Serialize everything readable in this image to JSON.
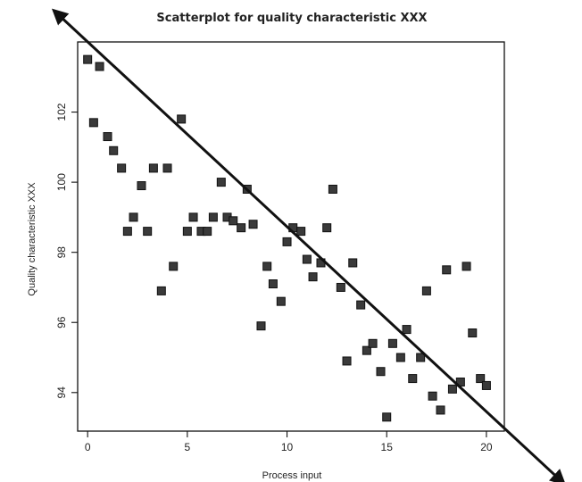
{
  "chart_data": {
    "type": "scatter",
    "title": "Scatterplot for quality characteristic XXX",
    "xlabel": "Process input",
    "ylabel": "Quality characteristic XXX",
    "xlim": [
      -0.5,
      20.9
    ],
    "ylim": [
      92.9,
      104.0
    ],
    "x_ticks": [
      0,
      5,
      10,
      15,
      20
    ],
    "y_ticks": [
      94,
      96,
      98,
      100,
      102
    ],
    "x_tick_labels": [
      "0",
      "5",
      "10",
      "15",
      "20"
    ],
    "y_tick_labels": [
      "94",
      "96",
      "98",
      "100",
      "102"
    ],
    "grid": false,
    "legend": "none",
    "points": [
      {
        "x": 0.0,
        "y": 103.5
      },
      {
        "x": 0.3,
        "y": 101.7
      },
      {
        "x": 0.6,
        "y": 103.3
      },
      {
        "x": 1.0,
        "y": 101.3
      },
      {
        "x": 1.3,
        "y": 100.9
      },
      {
        "x": 1.7,
        "y": 100.4
      },
      {
        "x": 2.0,
        "y": 98.6
      },
      {
        "x": 2.3,
        "y": 99.0
      },
      {
        "x": 2.7,
        "y": 99.9
      },
      {
        "x": 3.0,
        "y": 98.6
      },
      {
        "x": 3.3,
        "y": 100.4
      },
      {
        "x": 3.7,
        "y": 96.9
      },
      {
        "x": 4.0,
        "y": 100.4
      },
      {
        "x": 4.3,
        "y": 97.6
      },
      {
        "x": 4.7,
        "y": 101.8
      },
      {
        "x": 5.0,
        "y": 98.6
      },
      {
        "x": 5.3,
        "y": 99.0
      },
      {
        "x": 5.7,
        "y": 98.6
      },
      {
        "x": 6.0,
        "y": 98.6
      },
      {
        "x": 6.3,
        "y": 99.0
      },
      {
        "x": 6.7,
        "y": 100.0
      },
      {
        "x": 7.0,
        "y": 99.0
      },
      {
        "x": 7.3,
        "y": 98.9
      },
      {
        "x": 7.7,
        "y": 98.7
      },
      {
        "x": 8.0,
        "y": 99.8
      },
      {
        "x": 8.3,
        "y": 98.8
      },
      {
        "x": 8.7,
        "y": 95.9
      },
      {
        "x": 9.0,
        "y": 97.6
      },
      {
        "x": 9.3,
        "y": 97.1
      },
      {
        "x": 9.7,
        "y": 96.6
      },
      {
        "x": 10.0,
        "y": 98.3
      },
      {
        "x": 10.3,
        "y": 98.7
      },
      {
        "x": 10.7,
        "y": 98.6
      },
      {
        "x": 11.0,
        "y": 97.8
      },
      {
        "x": 11.3,
        "y": 97.3
      },
      {
        "x": 11.7,
        "y": 97.7
      },
      {
        "x": 12.0,
        "y": 98.7
      },
      {
        "x": 12.3,
        "y": 99.8
      },
      {
        "x": 12.7,
        "y": 97.0
      },
      {
        "x": 13.0,
        "y": 94.9
      },
      {
        "x": 13.3,
        "y": 97.7
      },
      {
        "x": 13.7,
        "y": 96.5
      },
      {
        "x": 14.0,
        "y": 95.2
      },
      {
        "x": 14.3,
        "y": 95.4
      },
      {
        "x": 14.7,
        "y": 94.6
      },
      {
        "x": 15.0,
        "y": 93.3
      },
      {
        "x": 15.3,
        "y": 95.4
      },
      {
        "x": 15.7,
        "y": 95.0
      },
      {
        "x": 16.0,
        "y": 95.8
      },
      {
        "x": 16.3,
        "y": 94.4
      },
      {
        "x": 16.7,
        "y": 95.0
      },
      {
        "x": 17.0,
        "y": 96.9
      },
      {
        "x": 17.3,
        "y": 93.9
      },
      {
        "x": 17.7,
        "y": 93.5
      },
      {
        "x": 18.0,
        "y": 97.5
      },
      {
        "x": 18.3,
        "y": 94.1
      },
      {
        "x": 18.7,
        "y": 94.3
      },
      {
        "x": 19.0,
        "y": 97.6
      },
      {
        "x": 19.3,
        "y": 95.7
      },
      {
        "x": 19.7,
        "y": 94.4
      },
      {
        "x": 20.0,
        "y": 94.2
      }
    ],
    "trend_line": {
      "x1": -1.7,
      "y1": 104.9,
      "x2": 23.9,
      "y2": 91.4,
      "arrows": "both"
    }
  }
}
